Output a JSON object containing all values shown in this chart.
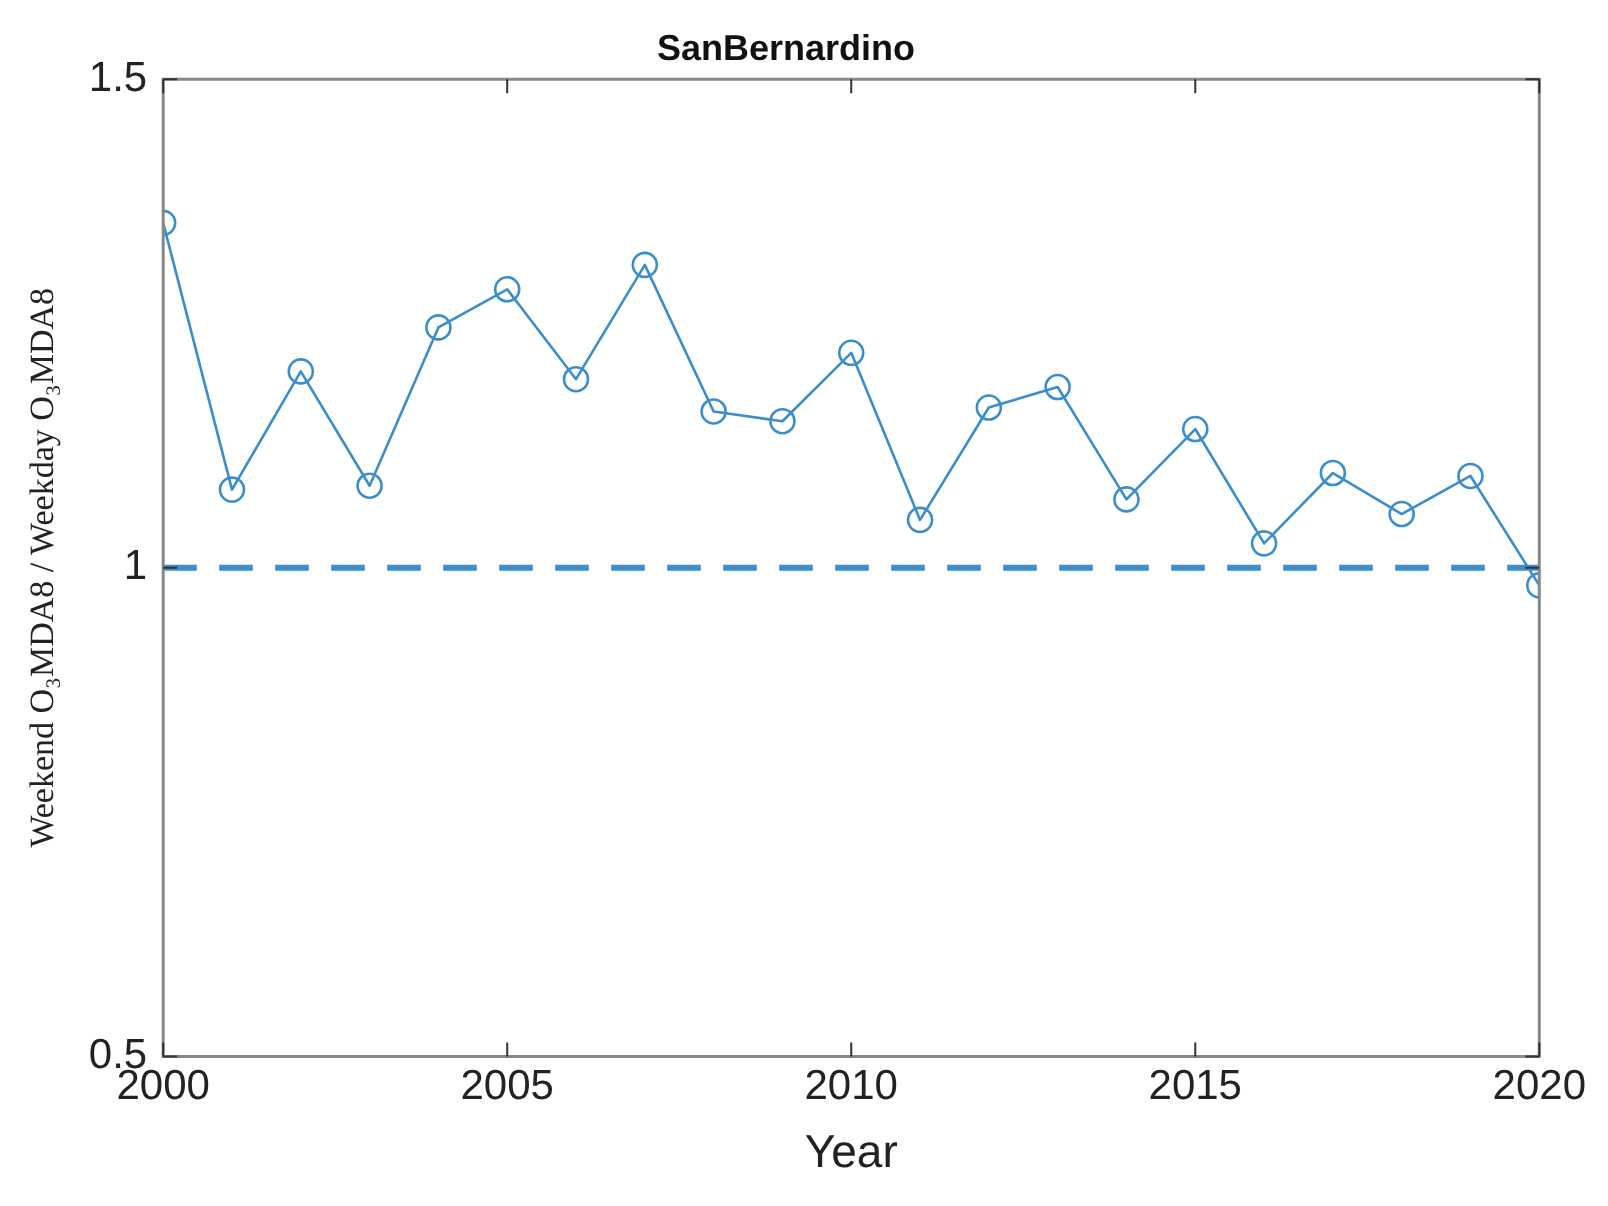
{
  "chart_data": {
    "type": "line",
    "title": "SanBernardino",
    "xlabel": "Year",
    "ylabel": "Weekend O₃MDA8 / Weekday O₃MDA8",
    "x": [
      2000,
      2001,
      2002,
      2003,
      2004,
      2005,
      2006,
      2007,
      2008,
      2009,
      2010,
      2011,
      2012,
      2013,
      2014,
      2015,
      2016,
      2017,
      2018,
      2019,
      2020
    ],
    "series": [
      {
        "color": "#3c8dcc",
        "values": [
          1.353,
          1.08,
          1.201,
          1.084,
          1.246,
          1.285,
          1.193,
          1.31,
          1.16,
          1.15,
          1.22,
          1.049,
          1.164,
          1.185,
          1.07,
          1.142,
          1.025,
          1.097,
          1.055,
          1.094,
          0.982
        ]
      }
    ],
    "xlim": [
      2000,
      2020
    ],
    "xticks": [
      2000,
      2005,
      2010,
      2015,
      2020
    ],
    "ylim": [
      0.5,
      1.5
    ],
    "yticks": [
      0.5,
      1,
      1.5
    ],
    "ref_lines": [
      {
        "axis": "y",
        "value": 1,
        "color": "#3c8dcc",
        "line_style": "dashed"
      }
    ],
    "marker": "circle",
    "line_style": "solid",
    "grid": false,
    "legend": false
  }
}
